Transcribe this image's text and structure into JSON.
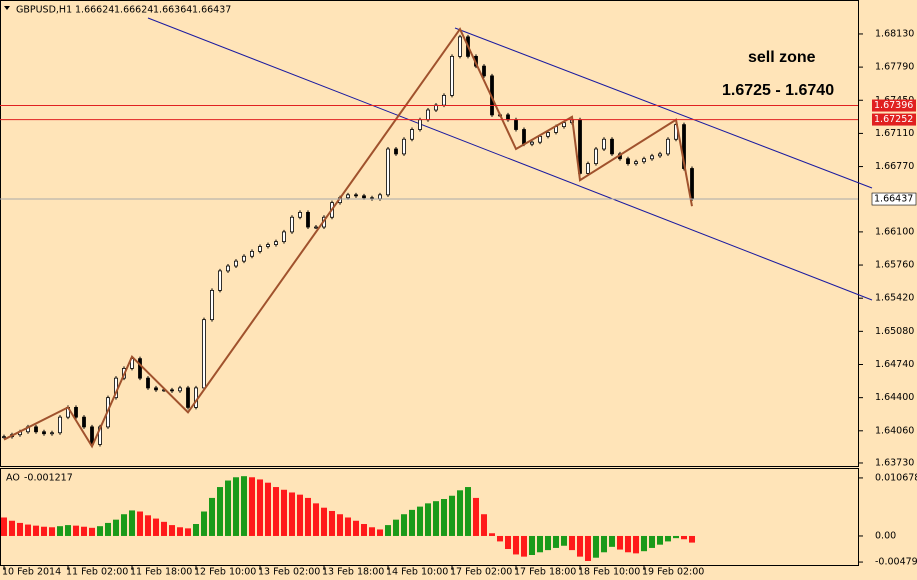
{
  "chart_data": [
    {
      "type": "candlestick",
      "symbol": "GBPUSD,H1",
      "ohlc": [
        1.66624,
        1.66624,
        1.66364,
        1.66437
      ],
      "values": [
        1.64,
        1.6402,
        1.6405,
        1.641,
        1.6405,
        1.6403,
        1.6404,
        1.642,
        1.643,
        1.642,
        1.641,
        1.6392,
        1.641,
        1.644,
        1.646,
        1.647,
        1.648,
        1.646,
        1.645,
        1.6448,
        1.6448,
        1.6447,
        1.645,
        1.643,
        1.645,
        1.652,
        1.655,
        1.657,
        1.6575,
        1.658,
        1.6585,
        1.659,
        1.6595,
        1.6597,
        1.66,
        1.661,
        1.6625,
        1.663,
        1.6615,
        1.6615,
        1.6625,
        1.664,
        1.6645,
        1.6648,
        1.6647,
        1.6645,
        1.6644,
        1.6648,
        1.6695,
        1.669,
        1.6705,
        1.6715,
        1.6725,
        1.6735,
        1.674,
        1.675,
        1.679,
        1.681,
        1.679,
        1.678,
        1.677,
        1.673,
        1.673,
        1.6725,
        1.6715,
        1.67,
        1.6702,
        1.6708,
        1.6712,
        1.6718,
        1.6722,
        1.6725,
        1.667,
        1.668,
        1.6695,
        1.6705,
        1.669,
        1.6685,
        1.668,
        1.6682,
        1.6685,
        1.6688,
        1.669,
        1.6705,
        1.672,
        1.6675,
        1.66437
      ],
      "xlabels": [
        "10 Feb 2014",
        "11 Feb 02:00",
        "11 Feb 18:00",
        "12 Feb 10:00",
        "13 Feb 02:00",
        "13 Feb 18:00",
        "14 Feb 10:00",
        "17 Feb 02:00",
        "17 Feb 18:00",
        "18 Feb 10:00",
        "19 Feb 02:00"
      ],
      "zigzag": {
        "index": [
          0,
          8,
          11,
          16,
          23,
          57,
          64,
          71,
          72,
          84,
          86
        ],
        "values": [
          1.6397,
          1.643,
          1.639,
          1.6482,
          1.6425,
          1.6818,
          1.6695,
          1.6728,
          1.6663,
          1.6725,
          1.66364
        ],
        "color": "#a0522d"
      },
      "levels": [
        1.67396,
        1.67252
      ],
      "level_color": "#e02020",
      "annotations": [
        "sell zone",
        "1.6725 - 1.6740"
      ],
      "ylim": [
        1.63699,
        1.68468
      ],
      "yticks": [
        {
          "value": 1.6813,
          "label": "1.68130"
        },
        {
          "value": 1.6779,
          "label": "1.67790"
        },
        {
          "value": 1.6745,
          "label": "1.67450"
        },
        {
          "value": 1.6711,
          "label": "1.67110"
        },
        {
          "value": 1.6677,
          "label": "1.66770"
        },
        {
          "value": 1.661,
          "label": "1.66100"
        },
        {
          "value": 1.6576,
          "label": "1.65760"
        },
        {
          "value": 1.6542,
          "label": "1.65420"
        },
        {
          "value": 1.6508,
          "label": "1.65080"
        },
        {
          "value": 1.6474,
          "label": "1.64740"
        },
        {
          "value": 1.644,
          "label": "1.64400"
        },
        {
          "value": 1.6406,
          "label": "1.64060"
        },
        {
          "value": 1.6373,
          "label": "1.63730"
        }
      ]
    },
    {
      "type": "bar",
      "name": "AO",
      "up_color": "#1a9a1a",
      "down_color": "#ff1a1a",
      "values": [
        0.0034,
        0.0028,
        0.0024,
        0.0021,
        0.0019,
        0.0017,
        0.0016,
        0.0018,
        0.002,
        0.0019,
        0.0017,
        0.0015,
        0.0018,
        0.0024,
        0.003,
        0.004,
        0.0047,
        0.0045,
        0.0038,
        0.0032,
        0.0026,
        0.002,
        0.0016,
        0.0014,
        0.0022,
        0.0045,
        0.007,
        0.009,
        0.0102,
        0.0108,
        0.011,
        0.0108,
        0.0104,
        0.0098,
        0.009,
        0.0085,
        0.008,
        0.0076,
        0.007,
        0.006,
        0.0052,
        0.0046,
        0.004,
        0.0034,
        0.0028,
        0.0022,
        0.0016,
        0.0012,
        0.002,
        0.003,
        0.004,
        0.0048,
        0.0054,
        0.006,
        0.0064,
        0.0068,
        0.0074,
        0.0084,
        0.009,
        0.007,
        0.004,
        0.0005,
        -0.001,
        -0.0024,
        -0.0034,
        -0.0038,
        -0.0035,
        -0.003,
        -0.0026,
        -0.0022,
        -0.0018,
        -0.0026,
        -0.0038,
        -0.0046,
        -0.004,
        -0.003,
        -0.002,
        -0.0025,
        -0.003,
        -0.0032,
        -0.0028,
        -0.0022,
        -0.0016,
        -0.001,
        -0.0004,
        -0.0006,
        -0.001217
      ],
      "ylim": [
        -0.00534,
        0.01232
      ],
      "yticks": [
        0.010678,
        {
          "value": 0,
          "label": "0.00"
        },
        -0.004798
      ]
    }
  ]
}
